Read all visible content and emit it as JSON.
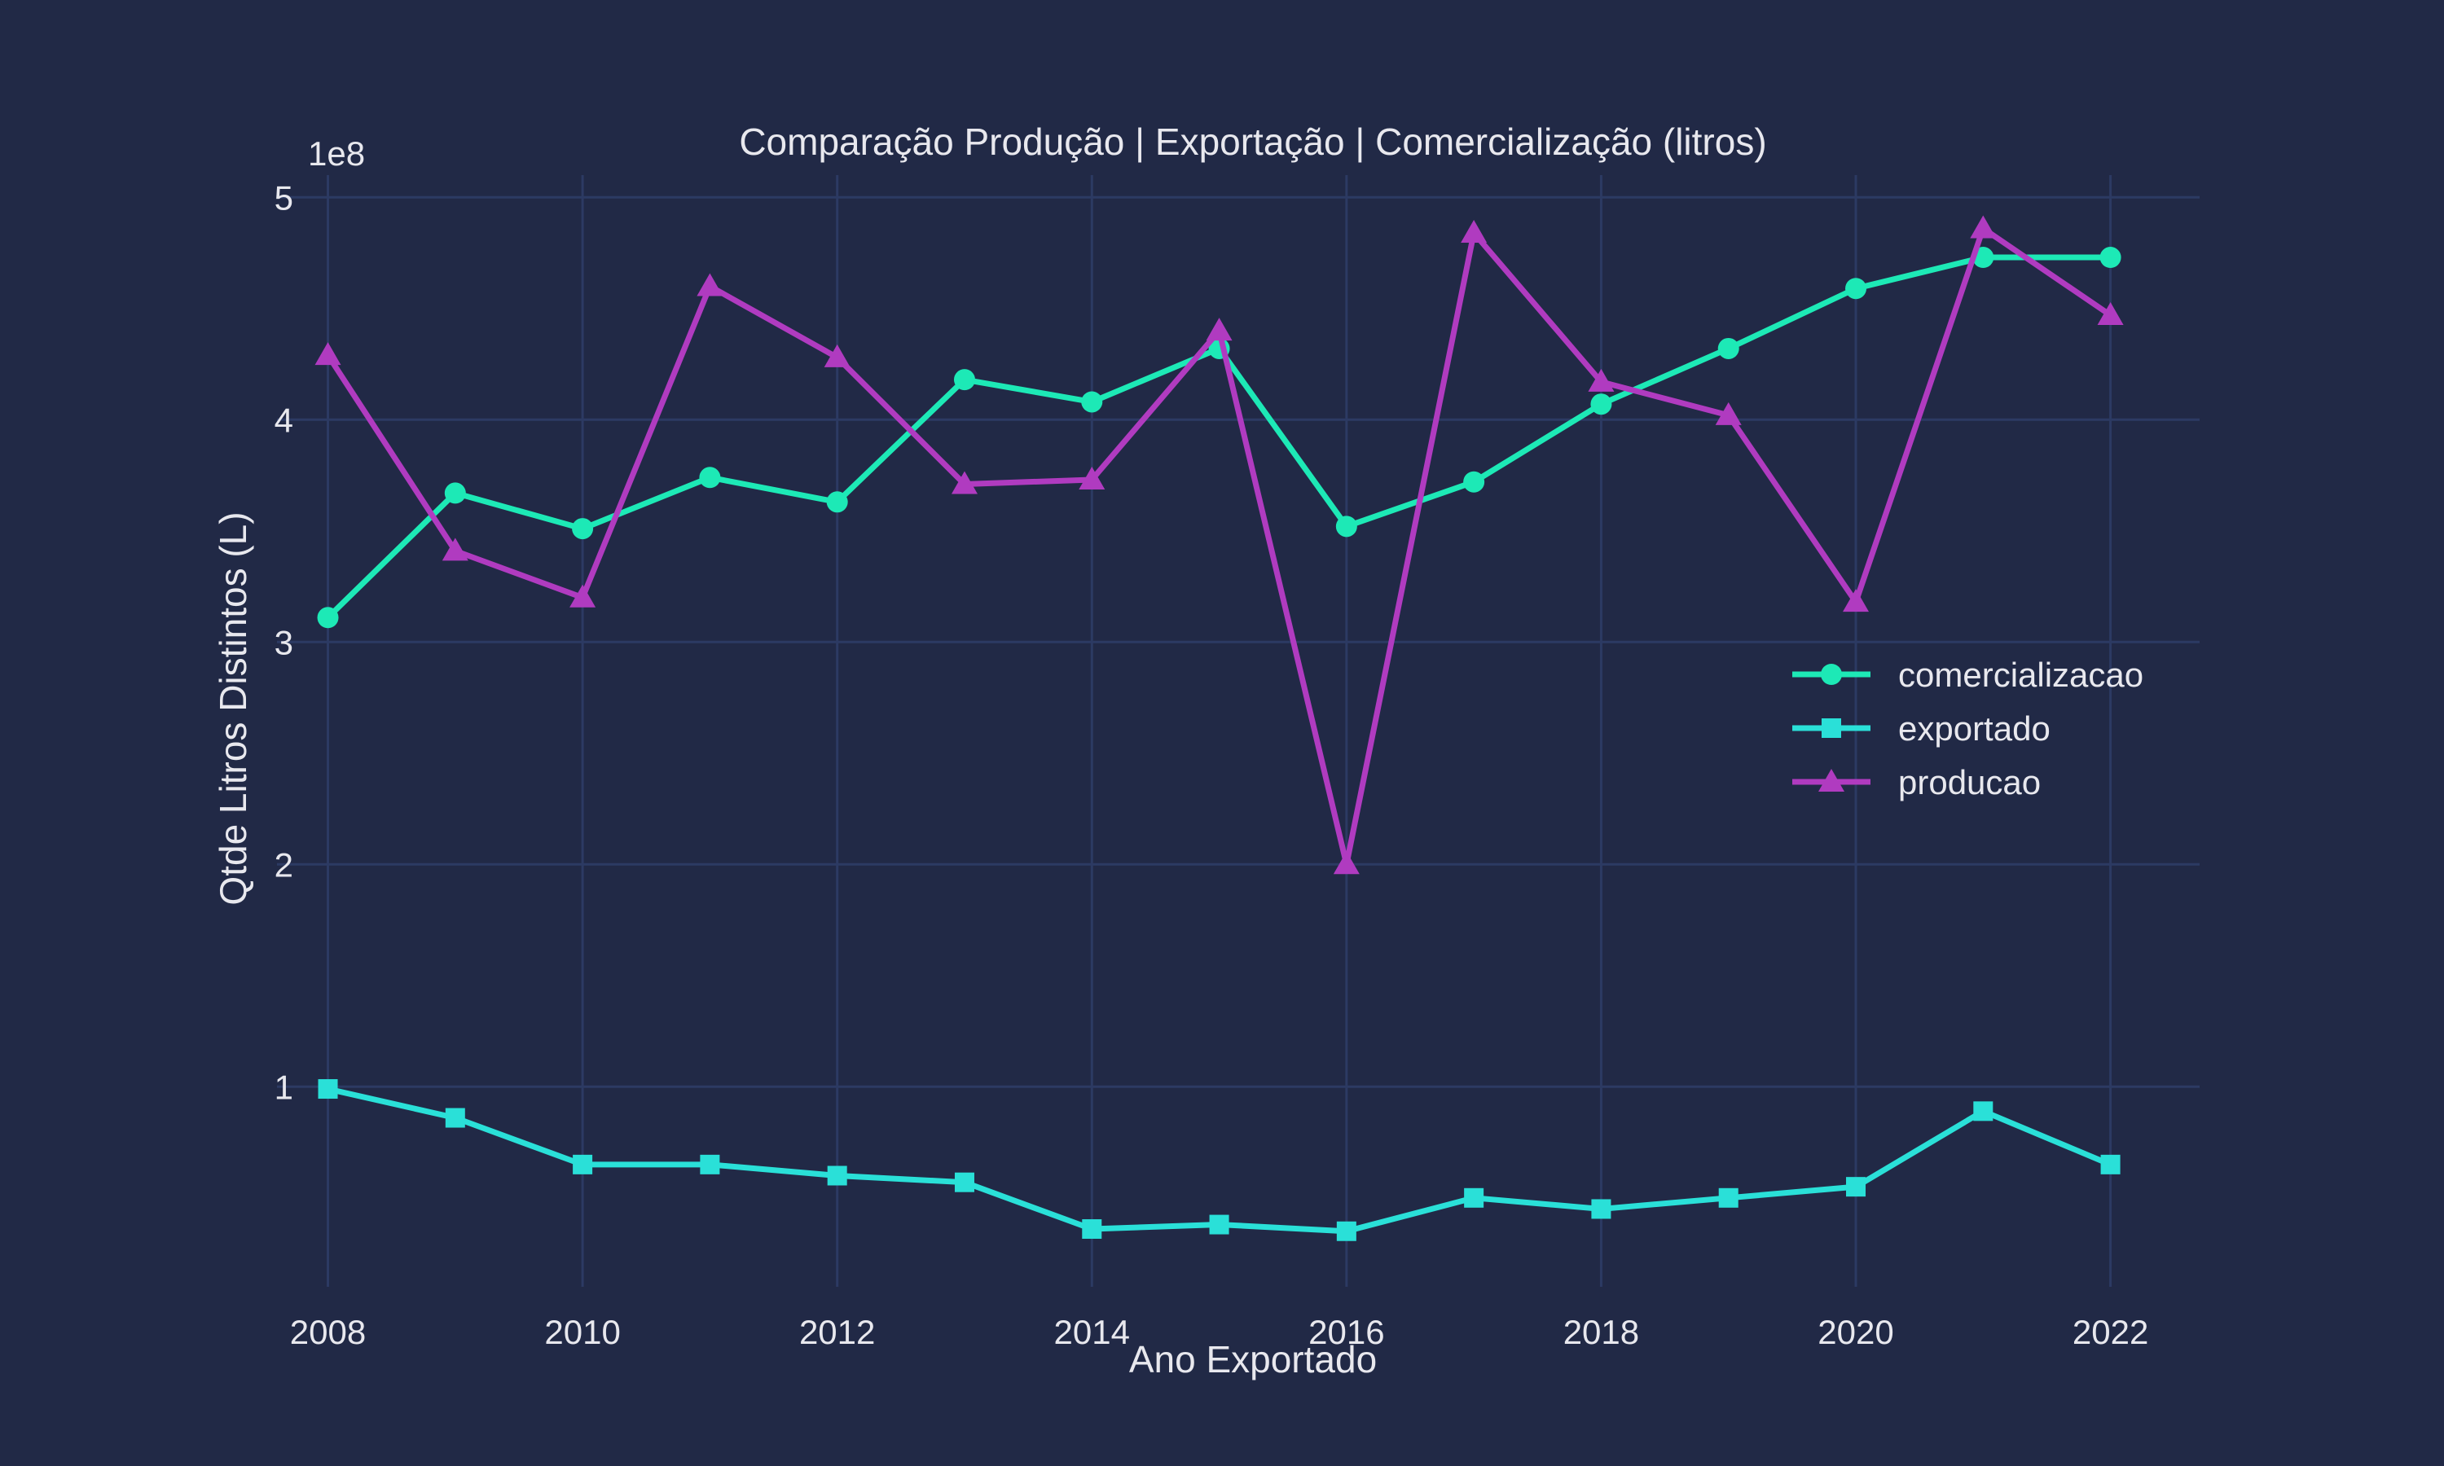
{
  "colors": {
    "background": "#212946",
    "grid": "#2c3a63",
    "text": "#e8e8ee"
  },
  "chart_data": {
    "type": "line",
    "title": "Comparação Produção | Exportação | Comercialização (litros)",
    "xlabel": "Ano Exportado",
    "ylabel": "Qtde Litros Distintos (L)",
    "y_exponent_label": "1e8",
    "y_scale_factor": 100000000,
    "xlim": [
      2007.6,
      2022.7
    ],
    "ylim": [
      10000000,
      510000000
    ],
    "x_ticks": [
      2008,
      2010,
      2012,
      2014,
      2016,
      2018,
      2020,
      2022
    ],
    "x_tick_labels": [
      "2008",
      "2010",
      "2012",
      "2014",
      "2016",
      "2018",
      "2020",
      "2022"
    ],
    "y_ticks": [
      100000000,
      200000000,
      300000000,
      400000000,
      500000000
    ],
    "y_tick_labels": [
      "1",
      "2",
      "3",
      "4",
      "5"
    ],
    "grid": true,
    "legend_position": "center-right",
    "x": [
      2008,
      2009,
      2010,
      2011,
      2012,
      2013,
      2014,
      2015,
      2016,
      2017,
      2018,
      2019,
      2020,
      2021,
      2022
    ],
    "series": [
      {
        "name": "comercializacao",
        "color": "#1de9b6",
        "marker": "circle",
        "values": [
          311000000,
          367000000,
          351000000,
          374000000,
          363000000,
          418000000,
          408000000,
          432000000,
          352000000,
          372000000,
          407000000,
          432000000,
          459000000,
          473000000,
          473000000
        ]
      },
      {
        "name": "exportado",
        "color": "#2ae0d8",
        "marker": "square",
        "values": [
          99000000,
          86000000,
          65000000,
          65000000,
          60000000,
          57000000,
          36000000,
          38000000,
          35000000,
          50000000,
          45000000,
          50000000,
          55000000,
          89000000,
          65000000
        ]
      },
      {
        "name": "producao",
        "color": "#b03bc0",
        "marker": "triangle",
        "values": [
          429000000,
          341000000,
          320000000,
          460000000,
          428000000,
          371000000,
          373000000,
          440000000,
          200000000,
          484000000,
          417000000,
          402000000,
          318000000,
          486000000,
          447000000
        ]
      }
    ]
  }
}
